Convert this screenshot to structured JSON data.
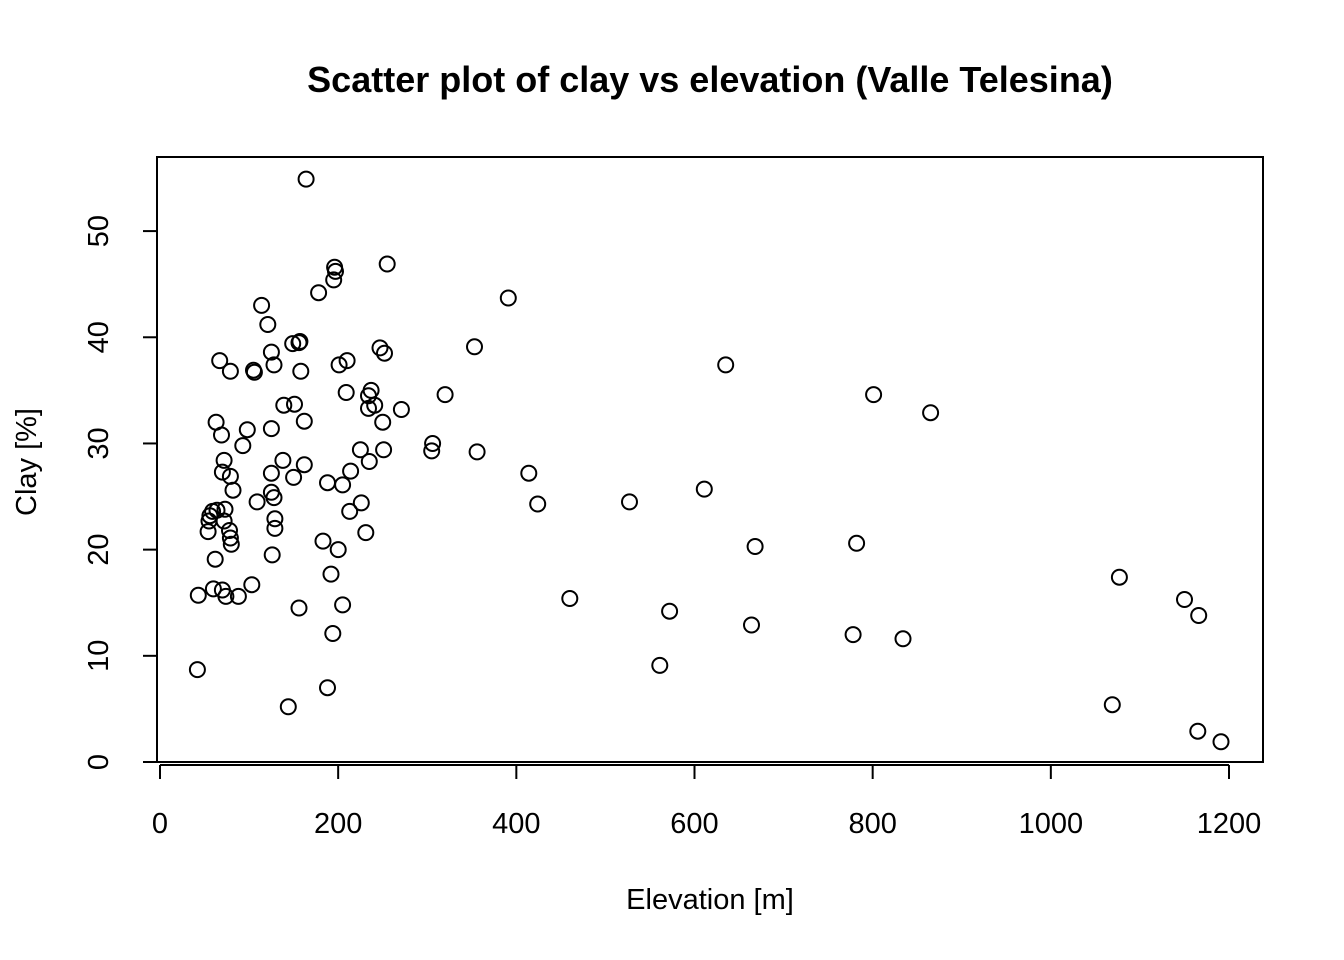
{
  "chart_data": {
    "type": "scatter",
    "title": "Scatter plot of clay vs elevation (Valle Telesina)",
    "xlabel": "Elevation [m]",
    "ylabel": "Clay [%]",
    "xlim": [
      0,
      1200
    ],
    "ylim": [
      0,
      55
    ],
    "xticks": [
      0,
      200,
      400,
      600,
      800,
      1000,
      1200
    ],
    "yticks": [
      0,
      10,
      20,
      30,
      40,
      50
    ],
    "xtick_labels": [
      "0",
      "200",
      "400",
      "600",
      "800",
      "1000",
      "1200"
    ],
    "ytick_labels": [
      "0",
      "10",
      "20",
      "30",
      "40",
      "50"
    ],
    "grid": false,
    "point_color": "#000000",
    "points": [
      [
        42,
        8.7
      ],
      [
        43,
        15.7
      ],
      [
        54,
        21.7
      ],
      [
        55,
        22.7
      ],
      [
        56,
        23.2
      ],
      [
        59,
        23.6
      ],
      [
        60,
        16.3
      ],
      [
        62,
        19.1
      ],
      [
        63,
        32.0
      ],
      [
        64,
        23.7
      ],
      [
        67,
        37.8
      ],
      [
        69,
        30.8
      ],
      [
        70,
        27.3
      ],
      [
        70,
        16.2
      ],
      [
        72,
        28.4
      ],
      [
        72,
        22.7
      ],
      [
        73,
        23.8
      ],
      [
        74,
        15.6
      ],
      [
        78,
        21.8
      ],
      [
        79,
        26.9
      ],
      [
        79,
        21.1
      ],
      [
        79,
        36.8
      ],
      [
        80,
        20.5
      ],
      [
        82,
        25.6
      ],
      [
        88,
        15.6
      ],
      [
        93,
        29.8
      ],
      [
        98,
        31.3
      ],
      [
        103,
        16.7
      ],
      [
        105,
        36.9
      ],
      [
        106,
        36.7
      ],
      [
        109,
        24.5
      ],
      [
        114,
        43.0
      ],
      [
        121,
        41.2
      ],
      [
        125,
        38.6
      ],
      [
        125,
        31.4
      ],
      [
        125,
        27.2
      ],
      [
        125,
        25.4
      ],
      [
        126,
        19.5
      ],
      [
        128,
        37.4
      ],
      [
        128,
        24.9
      ],
      [
        129,
        22.9
      ],
      [
        129,
        22.0
      ],
      [
        138,
        28.4
      ],
      [
        139,
        33.6
      ],
      [
        144,
        5.2
      ],
      [
        149,
        39.4
      ],
      [
        150,
        26.8
      ],
      [
        151,
        33.7
      ],
      [
        156,
        39.5
      ],
      [
        156,
        14.5
      ],
      [
        157,
        39.6
      ],
      [
        158,
        36.8
      ],
      [
        162,
        32.1
      ],
      [
        162,
        28.0
      ],
      [
        164,
        54.9
      ],
      [
        178,
        44.2
      ],
      [
        183,
        20.8
      ],
      [
        188,
        26.3
      ],
      [
        188,
        7.0
      ],
      [
        192,
        17.7
      ],
      [
        194,
        12.1
      ],
      [
        195,
        45.4
      ],
      [
        196,
        46.6
      ],
      [
        197,
        46.2
      ],
      [
        200,
        20.0
      ],
      [
        201,
        37.4
      ],
      [
        205,
        26.1
      ],
      [
        205,
        14.8
      ],
      [
        209,
        34.8
      ],
      [
        210,
        37.8
      ],
      [
        213,
        23.6
      ],
      [
        214,
        27.4
      ],
      [
        225,
        29.4
      ],
      [
        226,
        24.4
      ],
      [
        231,
        21.6
      ],
      [
        234,
        34.5
      ],
      [
        234,
        33.3
      ],
      [
        235,
        28.3
      ],
      [
        237,
        35.0
      ],
      [
        241,
        33.6
      ],
      [
        247,
        39.0
      ],
      [
        250,
        32.0
      ],
      [
        251,
        29.4
      ],
      [
        252,
        38.5
      ],
      [
        255,
        46.9
      ],
      [
        271,
        33.2
      ],
      [
        305,
        29.3
      ],
      [
        306,
        30.0
      ],
      [
        320,
        34.6
      ],
      [
        353,
        39.1
      ],
      [
        356,
        29.2
      ],
      [
        391,
        43.7
      ],
      [
        414,
        27.2
      ],
      [
        424,
        24.3
      ],
      [
        460,
        15.4
      ],
      [
        527,
        24.5
      ],
      [
        561,
        9.1
      ],
      [
        572,
        14.2
      ],
      [
        611,
        25.7
      ],
      [
        635,
        37.4
      ],
      [
        664,
        12.9
      ],
      [
        668,
        20.3
      ],
      [
        778,
        12.0
      ],
      [
        782,
        20.6
      ],
      [
        801,
        34.6
      ],
      [
        834,
        11.6
      ],
      [
        865,
        32.9
      ],
      [
        1069,
        5.4
      ],
      [
        1077,
        17.4
      ],
      [
        1150,
        15.3
      ],
      [
        1165,
        2.9
      ],
      [
        1166,
        13.8
      ],
      [
        1191,
        1.9
      ]
    ]
  }
}
